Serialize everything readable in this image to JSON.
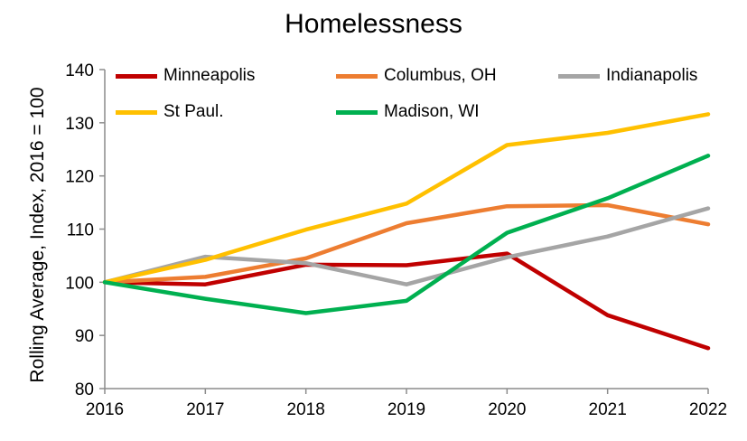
{
  "chart_data": {
    "type": "line",
    "title": "Homelessness",
    "xlabel": "",
    "ylabel": "Rolling Average, Index, 2016 = 100",
    "x": [
      2016,
      2017,
      2018,
      2019,
      2020,
      2021,
      2022
    ],
    "xticks": [
      "2016",
      "2017",
      "2018",
      "2019",
      "2020",
      "2021",
      "2022"
    ],
    "ylim": [
      80,
      140
    ],
    "yticks": [
      "80",
      "90",
      "100",
      "110",
      "120",
      "130",
      "140"
    ],
    "grid": false,
    "legend_position": "top",
    "series": [
      {
        "name": "Minneapolis",
        "color": "#c00000",
        "values": [
          100,
          99.6,
          103.3,
          103.2,
          105.4,
          93.8,
          87.6
        ]
      },
      {
        "name": "Columbus, OH",
        "color": "#ed7d31",
        "values": [
          100,
          101,
          104.5,
          111.1,
          114.3,
          114.5,
          110.9
        ]
      },
      {
        "name": "Indianapolis",
        "color": "#a5a5a5",
        "values": [
          100,
          104.8,
          103.6,
          99.6,
          104.7,
          108.6,
          113.9
        ]
      },
      {
        "name": "St Paul.",
        "color": "#ffc000",
        "values": [
          100,
          104.2,
          109.9,
          114.8,
          125.8,
          128.1,
          131.6
        ]
      },
      {
        "name": "Madison, WI",
        "color": "#00b050",
        "values": [
          100,
          96.9,
          94.2,
          96.5,
          109.3,
          115.8,
          123.8
        ]
      }
    ]
  }
}
